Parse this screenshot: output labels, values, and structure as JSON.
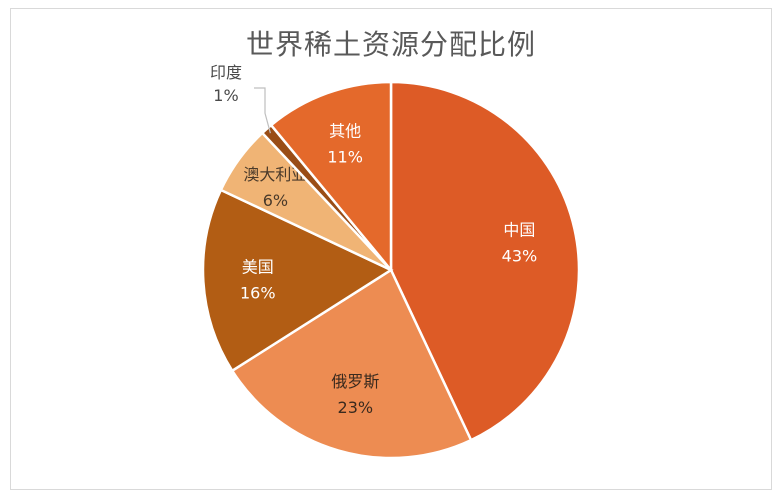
{
  "chart_data": {
    "type": "pie",
    "title": "世界稀土资源分配比例",
    "slices": [
      {
        "label": "中国",
        "value": 43,
        "value_label": "43%",
        "color": "#dd5b26",
        "text_color": "#ffffff"
      },
      {
        "label": "俄罗斯",
        "value": 23,
        "value_label": "23%",
        "color": "#ed8c52",
        "text_color": "#3a2a1e"
      },
      {
        "label": "美国",
        "value": 16,
        "value_label": "16%",
        "color": "#b25d14",
        "text_color": "#ffffff"
      },
      {
        "label": "澳大利亚",
        "value": 6,
        "value_label": "6%",
        "color": "#f0b475",
        "text_color": "#4a3a2a"
      },
      {
        "label": "印度",
        "value": 1,
        "value_label": "1%",
        "color": "#9a4d16",
        "text_color": "#4a4a4a"
      },
      {
        "label": "其他",
        "value": 11,
        "value_label": "11%",
        "color": "#e4692b",
        "text_color": "#ffffff"
      }
    ],
    "start_position": "12 o'clock",
    "direction": "clockwise"
  }
}
